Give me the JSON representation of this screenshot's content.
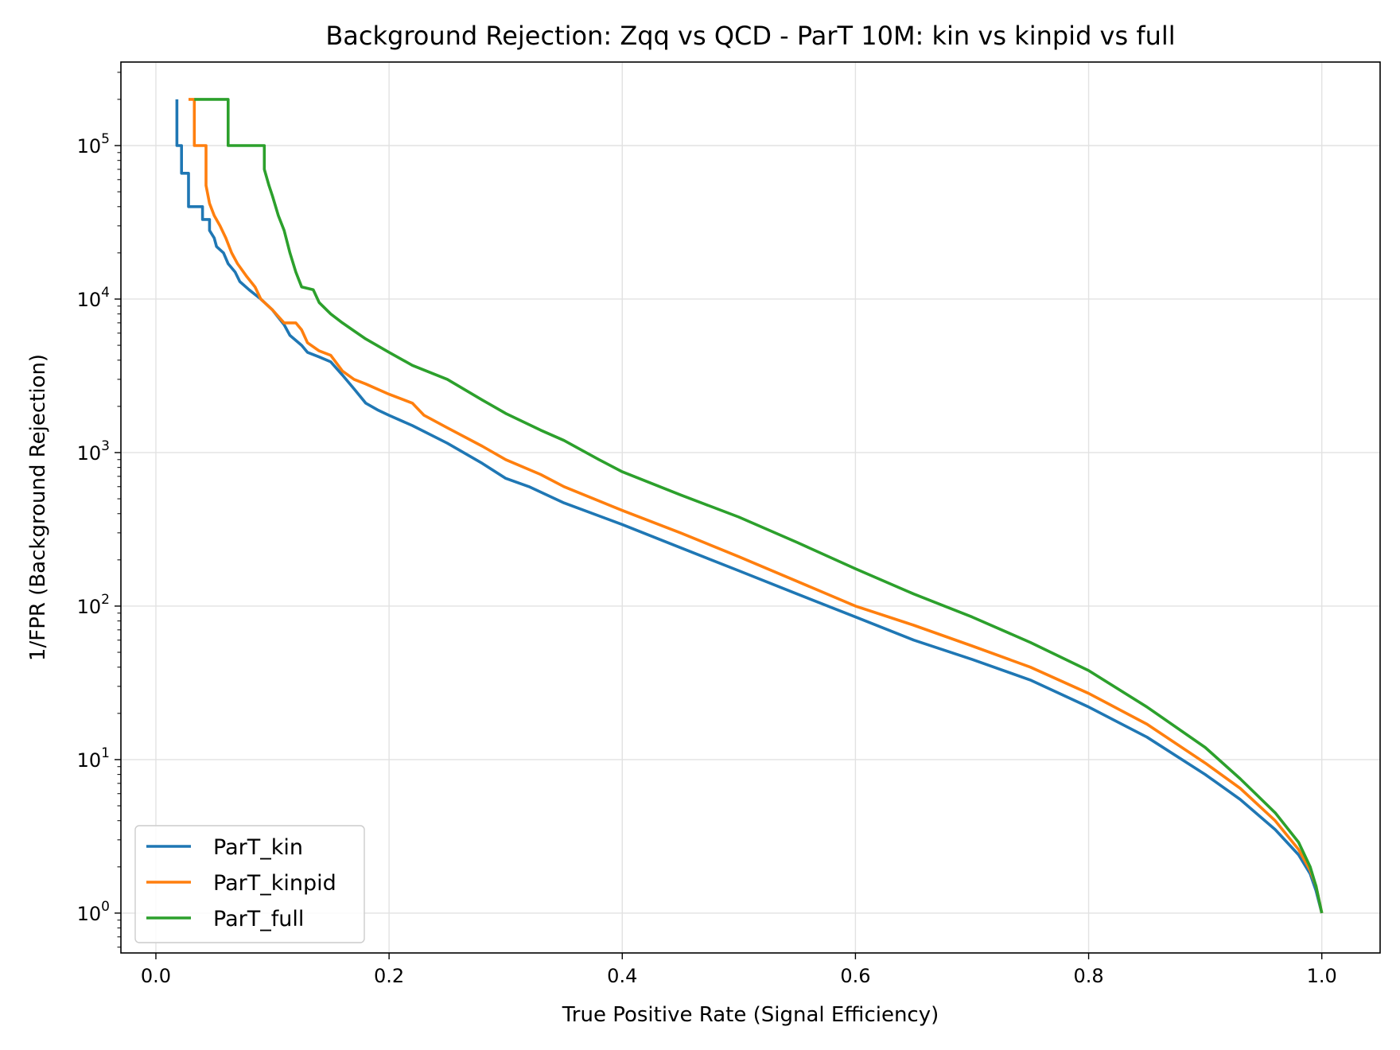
{
  "chart_data": {
    "type": "line",
    "title": "Background Rejection: Zqq vs QCD - ParT 10M: kin vs kinpid vs full",
    "xlabel": "True Positive Rate (Signal Efficiency)",
    "ylabel": "1/FPR (Background Rejection)",
    "xlim": [
      -0.03,
      1.05
    ],
    "ylim": [
      0.55,
      350000
    ],
    "yscale": "log",
    "grid": true,
    "legend_position": "lower-left",
    "x_ticks": [
      {
        "value": 0.0,
        "label": "0.0"
      },
      {
        "value": 0.2,
        "label": "0.2"
      },
      {
        "value": 0.4,
        "label": "0.4"
      },
      {
        "value": 0.6,
        "label": "0.6"
      },
      {
        "value": 0.8,
        "label": "0.8"
      },
      {
        "value": 1.0,
        "label": "1.0"
      }
    ],
    "y_ticks": [
      {
        "value": 1,
        "base": "10",
        "exp": "0"
      },
      {
        "value": 10,
        "base": "10",
        "exp": "1"
      },
      {
        "value": 100,
        "base": "10",
        "exp": "2"
      },
      {
        "value": 1000,
        "base": "10",
        "exp": "3"
      },
      {
        "value": 10000,
        "base": "10",
        "exp": "4"
      },
      {
        "value": 100000,
        "base": "10",
        "exp": "5"
      }
    ],
    "series": [
      {
        "name": "ParT_kin",
        "color": "#1f77b4",
        "points": [
          [
            0.018,
            200000
          ],
          [
            0.018,
            100000
          ],
          [
            0.022,
            100000
          ],
          [
            0.022,
            66000
          ],
          [
            0.028,
            66000
          ],
          [
            0.028,
            40000
          ],
          [
            0.04,
            40000
          ],
          [
            0.04,
            33000
          ],
          [
            0.046,
            33000
          ],
          [
            0.046,
            28000
          ],
          [
            0.05,
            25000
          ],
          [
            0.052,
            22000
          ],
          [
            0.058,
            20000
          ],
          [
            0.062,
            17000
          ],
          [
            0.068,
            15000
          ],
          [
            0.072,
            13000
          ],
          [
            0.08,
            11500
          ],
          [
            0.09,
            10000
          ],
          [
            0.1,
            8500
          ],
          [
            0.11,
            6800
          ],
          [
            0.115,
            5800
          ],
          [
            0.125,
            5000
          ],
          [
            0.13,
            4500
          ],
          [
            0.14,
            4200
          ],
          [
            0.15,
            3900
          ],
          [
            0.16,
            3200
          ],
          [
            0.17,
            2600
          ],
          [
            0.18,
            2100
          ],
          [
            0.19,
            1900
          ],
          [
            0.2,
            1750
          ],
          [
            0.22,
            1500
          ],
          [
            0.25,
            1150
          ],
          [
            0.28,
            850
          ],
          [
            0.3,
            680
          ],
          [
            0.32,
            600
          ],
          [
            0.35,
            470
          ],
          [
            0.4,
            340
          ],
          [
            0.45,
            240
          ],
          [
            0.5,
            170
          ],
          [
            0.55,
            120
          ],
          [
            0.6,
            85
          ],
          [
            0.65,
            60
          ],
          [
            0.7,
            45
          ],
          [
            0.75,
            33
          ],
          [
            0.8,
            22
          ],
          [
            0.85,
            14
          ],
          [
            0.9,
            8
          ],
          [
            0.93,
            5.5
          ],
          [
            0.96,
            3.5
          ],
          [
            0.98,
            2.4
          ],
          [
            0.99,
            1.8
          ],
          [
            0.995,
            1.4
          ],
          [
            1.0,
            1.0
          ]
        ]
      },
      {
        "name": "ParT_kinpid",
        "color": "#ff7f0e",
        "points": [
          [
            0.028,
            200000
          ],
          [
            0.033,
            200000
          ],
          [
            0.033,
            100000
          ],
          [
            0.043,
            100000
          ],
          [
            0.043,
            55000
          ],
          [
            0.046,
            42000
          ],
          [
            0.05,
            35000
          ],
          [
            0.055,
            30000
          ],
          [
            0.06,
            25000
          ],
          [
            0.065,
            20000
          ],
          [
            0.07,
            17000
          ],
          [
            0.078,
            14000
          ],
          [
            0.085,
            12000
          ],
          [
            0.09,
            10000
          ],
          [
            0.1,
            8500
          ],
          [
            0.11,
            7000
          ],
          [
            0.12,
            7000
          ],
          [
            0.125,
            6300
          ],
          [
            0.13,
            5200
          ],
          [
            0.14,
            4600
          ],
          [
            0.15,
            4300
          ],
          [
            0.16,
            3400
          ],
          [
            0.17,
            3000
          ],
          [
            0.18,
            2800
          ],
          [
            0.2,
            2400
          ],
          [
            0.22,
            2100
          ],
          [
            0.23,
            1750
          ],
          [
            0.25,
            1450
          ],
          [
            0.28,
            1100
          ],
          [
            0.3,
            900
          ],
          [
            0.33,
            720
          ],
          [
            0.35,
            600
          ],
          [
            0.4,
            420
          ],
          [
            0.45,
            300
          ],
          [
            0.5,
            210
          ],
          [
            0.55,
            145
          ],
          [
            0.6,
            100
          ],
          [
            0.65,
            75
          ],
          [
            0.7,
            55
          ],
          [
            0.75,
            40
          ],
          [
            0.8,
            27
          ],
          [
            0.85,
            17
          ],
          [
            0.9,
            9.5
          ],
          [
            0.93,
            6.5
          ],
          [
            0.96,
            4
          ],
          [
            0.98,
            2.6
          ],
          [
            0.99,
            1.9
          ],
          [
            0.995,
            1.5
          ],
          [
            1.0,
            1.0
          ]
        ]
      },
      {
        "name": "ParT_full",
        "color": "#2ca02c",
        "points": [
          [
            0.033,
            200000
          ],
          [
            0.062,
            200000
          ],
          [
            0.062,
            100000
          ],
          [
            0.093,
            100000
          ],
          [
            0.093,
            70000
          ],
          [
            0.097,
            55000
          ],
          [
            0.1,
            47000
          ],
          [
            0.105,
            35000
          ],
          [
            0.11,
            28000
          ],
          [
            0.115,
            20000
          ],
          [
            0.12,
            15000
          ],
          [
            0.125,
            12000
          ],
          [
            0.135,
            11500
          ],
          [
            0.14,
            9500
          ],
          [
            0.15,
            8000
          ],
          [
            0.16,
            7000
          ],
          [
            0.17,
            6200
          ],
          [
            0.18,
            5500
          ],
          [
            0.2,
            4500
          ],
          [
            0.22,
            3700
          ],
          [
            0.25,
            3000
          ],
          [
            0.28,
            2200
          ],
          [
            0.3,
            1800
          ],
          [
            0.33,
            1400
          ],
          [
            0.35,
            1200
          ],
          [
            0.38,
            900
          ],
          [
            0.4,
            750
          ],
          [
            0.45,
            530
          ],
          [
            0.5,
            380
          ],
          [
            0.55,
            260
          ],
          [
            0.6,
            175
          ],
          [
            0.65,
            120
          ],
          [
            0.7,
            85
          ],
          [
            0.75,
            58
          ],
          [
            0.8,
            38
          ],
          [
            0.85,
            22
          ],
          [
            0.9,
            12
          ],
          [
            0.93,
            7.5
          ],
          [
            0.96,
            4.5
          ],
          [
            0.98,
            2.9
          ],
          [
            0.99,
            2.0
          ],
          [
            0.995,
            1.5
          ],
          [
            1.0,
            1.0
          ]
        ]
      }
    ]
  }
}
